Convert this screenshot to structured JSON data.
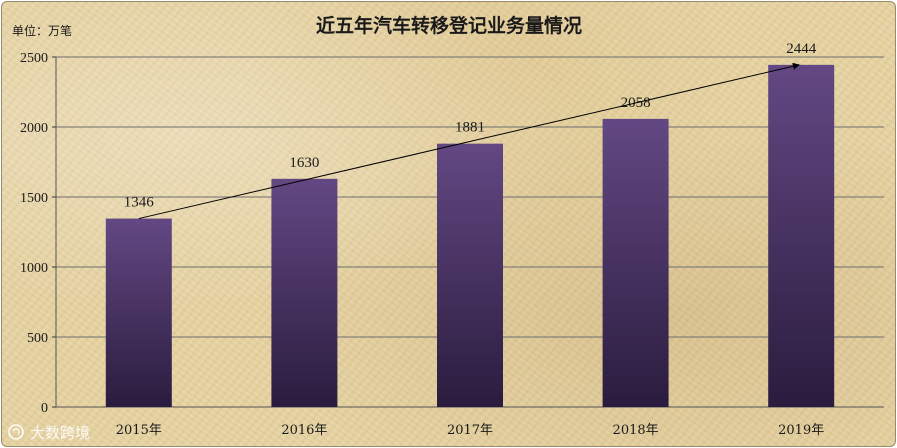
{
  "chart_data": {
    "type": "bar",
    "title": "近五年汽车转移登记业务量情况",
    "unit_label": "单位：万笔",
    "categories": [
      "2015年",
      "2016年",
      "2017年",
      "2018年",
      "2019年"
    ],
    "values": [
      1346,
      1630,
      1881,
      2058,
      2444
    ],
    "data_labels": [
      "1346",
      "1630",
      "1881",
      "2058",
      "2444"
    ],
    "ylim": [
      0,
      2500
    ],
    "yticks": [
      0,
      500,
      1000,
      1500,
      2000,
      2500
    ],
    "ytick_labels": [
      "0",
      "500",
      "1000",
      "1500",
      "2000",
      "2500"
    ],
    "grid": true,
    "trend_arrow": {
      "from_category": "2015年",
      "to_category": "2019年",
      "from_value": 1346,
      "to_value": 2444
    },
    "colors": {
      "bar_top": "#634883",
      "bar_bottom": "#2a1c3e",
      "background": "#e6d3a3",
      "grid": "#6e6e6e",
      "arrow": "#000000"
    }
  },
  "watermark": {
    "icon": "spiral-logo-icon",
    "text": "大数跨境"
  }
}
